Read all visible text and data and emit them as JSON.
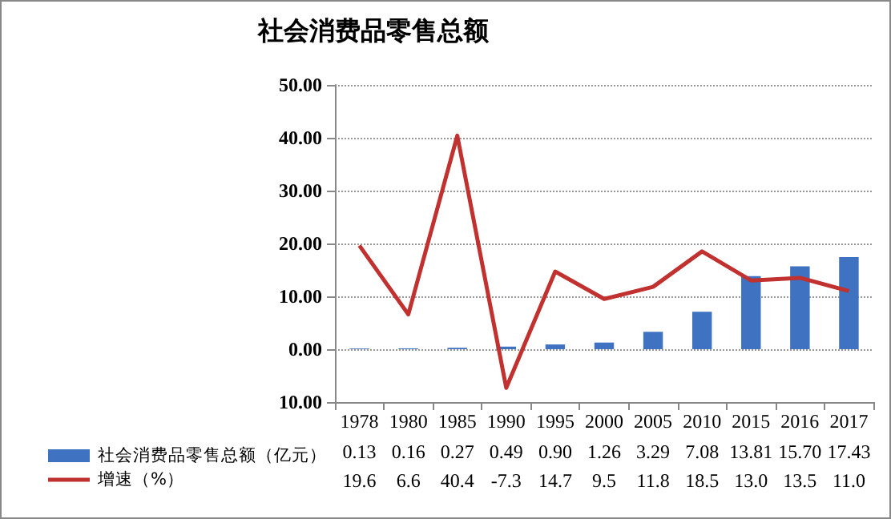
{
  "chart_data": {
    "type": "bar",
    "title": "社会消费品零售总额",
    "categories": [
      "1978",
      "1980",
      "1985",
      "1990",
      "1995",
      "2000",
      "2005",
      "2010",
      "2015",
      "2016",
      "2017"
    ],
    "series": [
      {
        "name": "社会消费品零售总额（亿元）",
        "color": "#3f72c0",
        "values": [
          0.13,
          0.16,
          0.27,
          0.49,
          0.9,
          1.26,
          3.29,
          7.08,
          13.81,
          15.7,
          17.43
        ],
        "value_labels": [
          "0.13",
          "0.16",
          "0.27",
          "0.49",
          "0.90",
          "1.26",
          "3.29",
          "7.08",
          "13.81",
          "15.70",
          "17.43"
        ]
      },
      {
        "name": "增速（%）",
        "type": "line",
        "color": "#c0312f",
        "values": [
          19.6,
          6.6,
          40.4,
          -7.3,
          14.7,
          9.5,
          11.8,
          18.5,
          13.0,
          13.5,
          11.0
        ],
        "value_labels": [
          "19.6",
          "6.6",
          "40.4",
          "-7.3",
          "14.7",
          "9.5",
          "11.8",
          "18.5",
          "13.0",
          "13.5",
          "11.0"
        ]
      }
    ],
    "ylim": [
      -10,
      50
    ],
    "yticks": [
      {
        "value": -10,
        "label": "10.00"
      },
      {
        "value": 0,
        "label": "0.00"
      },
      {
        "value": 10,
        "label": "10.00"
      },
      {
        "value": 20,
        "label": "20.00"
      },
      {
        "value": 30,
        "label": "30.00"
      },
      {
        "value": 40,
        "label": "40.00"
      },
      {
        "value": 50,
        "label": "50.00"
      }
    ],
    "grid": "y",
    "legend": "bottom left",
    "marker": "none"
  }
}
